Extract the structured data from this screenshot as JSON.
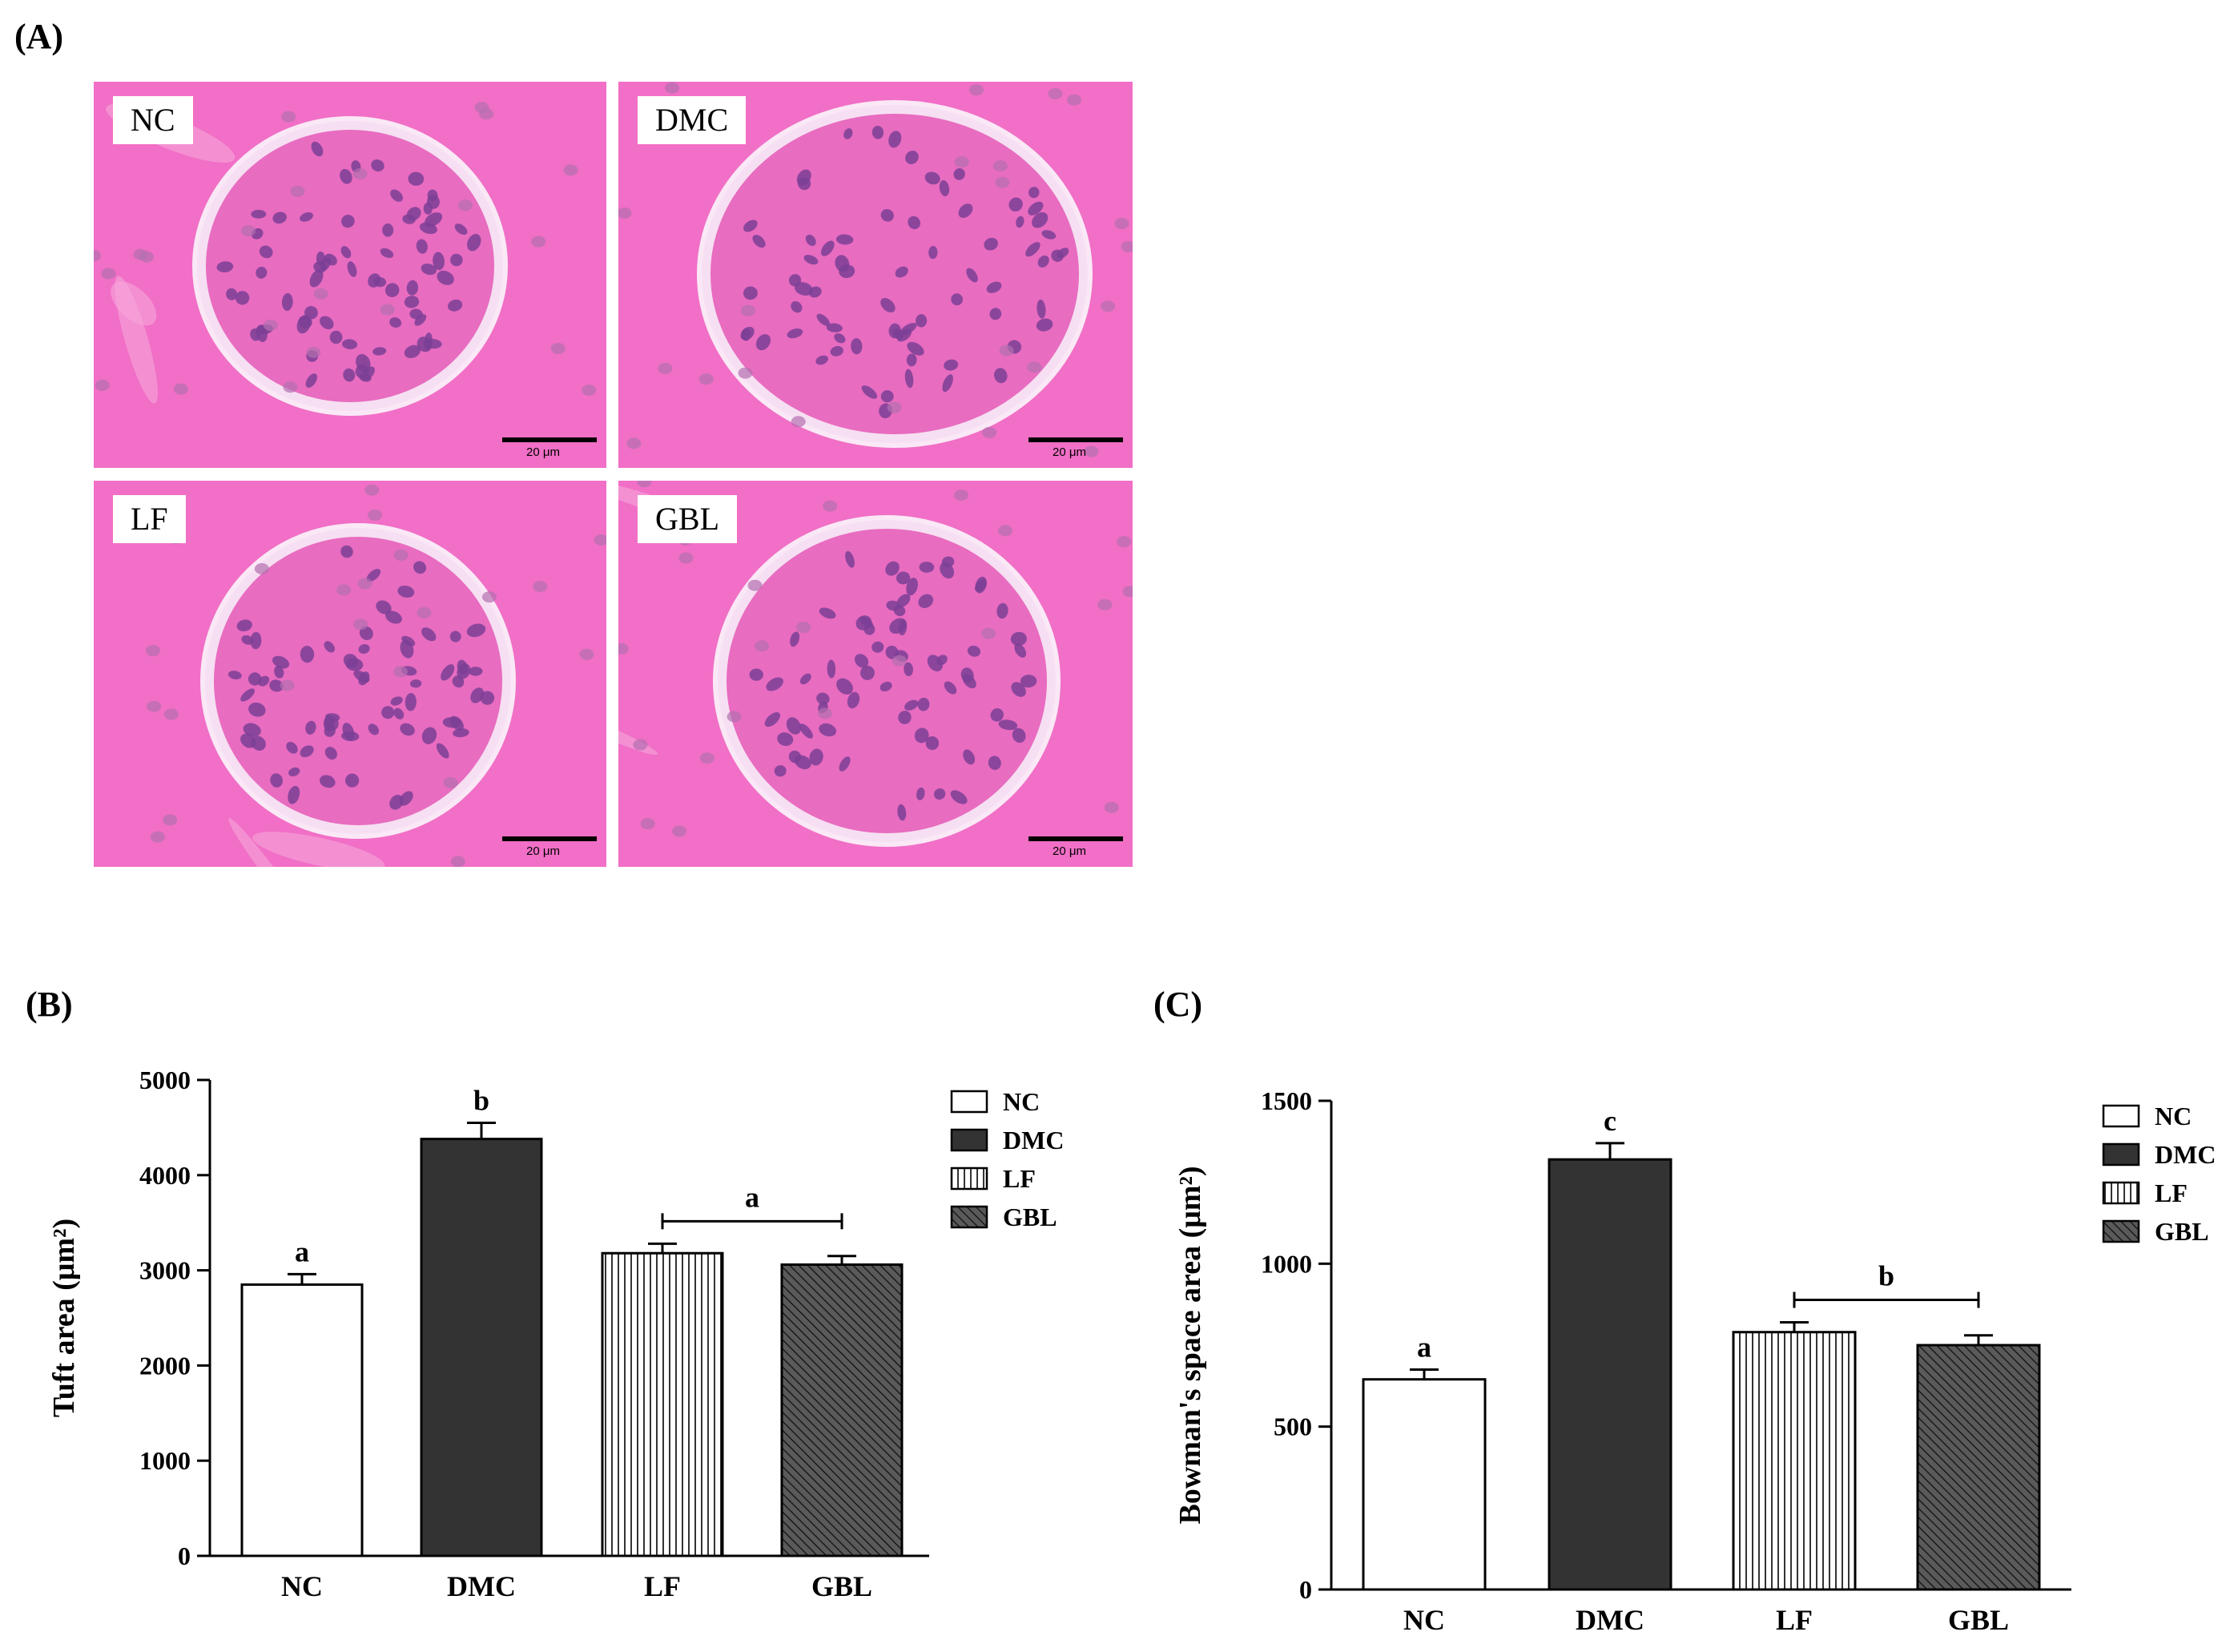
{
  "panel_a": {
    "letter": "(A)",
    "images": [
      {
        "label": "NC",
        "scale": "20 μm"
      },
      {
        "label": "DMC",
        "scale": "20 μm"
      },
      {
        "label": "LF",
        "scale": "20 μm"
      },
      {
        "label": "GBL",
        "scale": "20 μm"
      }
    ]
  },
  "colors": {
    "tissue": "#f16fc6",
    "nucleus": "#7a3f95",
    "space": "#f6dff2",
    "bar_white": "#ffffff",
    "bar_black": "#333333",
    "stroke": "#000000"
  },
  "chart_data": [
    {
      "type": "bar",
      "panel_letter": "(B)",
      "categories": [
        "NC",
        "DMC",
        "LF",
        "GBL"
      ],
      "values": [
        2850,
        4380,
        3180,
        3060
      ],
      "errors": [
        110,
        170,
        100,
        90
      ],
      "significance": [
        "a",
        "b",
        "a",
        "a"
      ],
      "bracket": {
        "from": 2,
        "to": 3,
        "label": "a"
      },
      "fills": [
        "white",
        "black",
        "vertical",
        "diagonal"
      ],
      "ylabel": "Tuft area (μm²)",
      "ylim": [
        0,
        5000
      ],
      "yticks": [
        "0",
        "1000",
        "2000",
        "3000",
        "4000",
        "5000"
      ],
      "ytick_values": [
        0,
        1000,
        2000,
        3000,
        4000,
        5000
      ],
      "legend": [
        "NC",
        "DMC",
        "LF",
        "GBL"
      ],
      "legend_position": "top-right"
    },
    {
      "type": "bar",
      "panel_letter": "(C)",
      "categories": [
        "NC",
        "DMC",
        "LF",
        "GBL"
      ],
      "values": [
        645,
        1320,
        790,
        750
      ],
      "errors": [
        30,
        50,
        30,
        30
      ],
      "significance": [
        "a",
        "c",
        "b",
        "b"
      ],
      "bracket": {
        "from": 2,
        "to": 3,
        "label": "b"
      },
      "fills": [
        "white",
        "black",
        "vertical",
        "diagonal"
      ],
      "ylabel": "Bowman's space area (μm²)",
      "ylim": [
        0,
        1500
      ],
      "yticks": [
        "0",
        "500",
        "1000",
        "1500"
      ],
      "ytick_values": [
        0,
        500,
        1000,
        1500
      ],
      "legend": [
        "NC",
        "DMC",
        "LF",
        "GBL"
      ],
      "legend_position": "top-right"
    }
  ]
}
